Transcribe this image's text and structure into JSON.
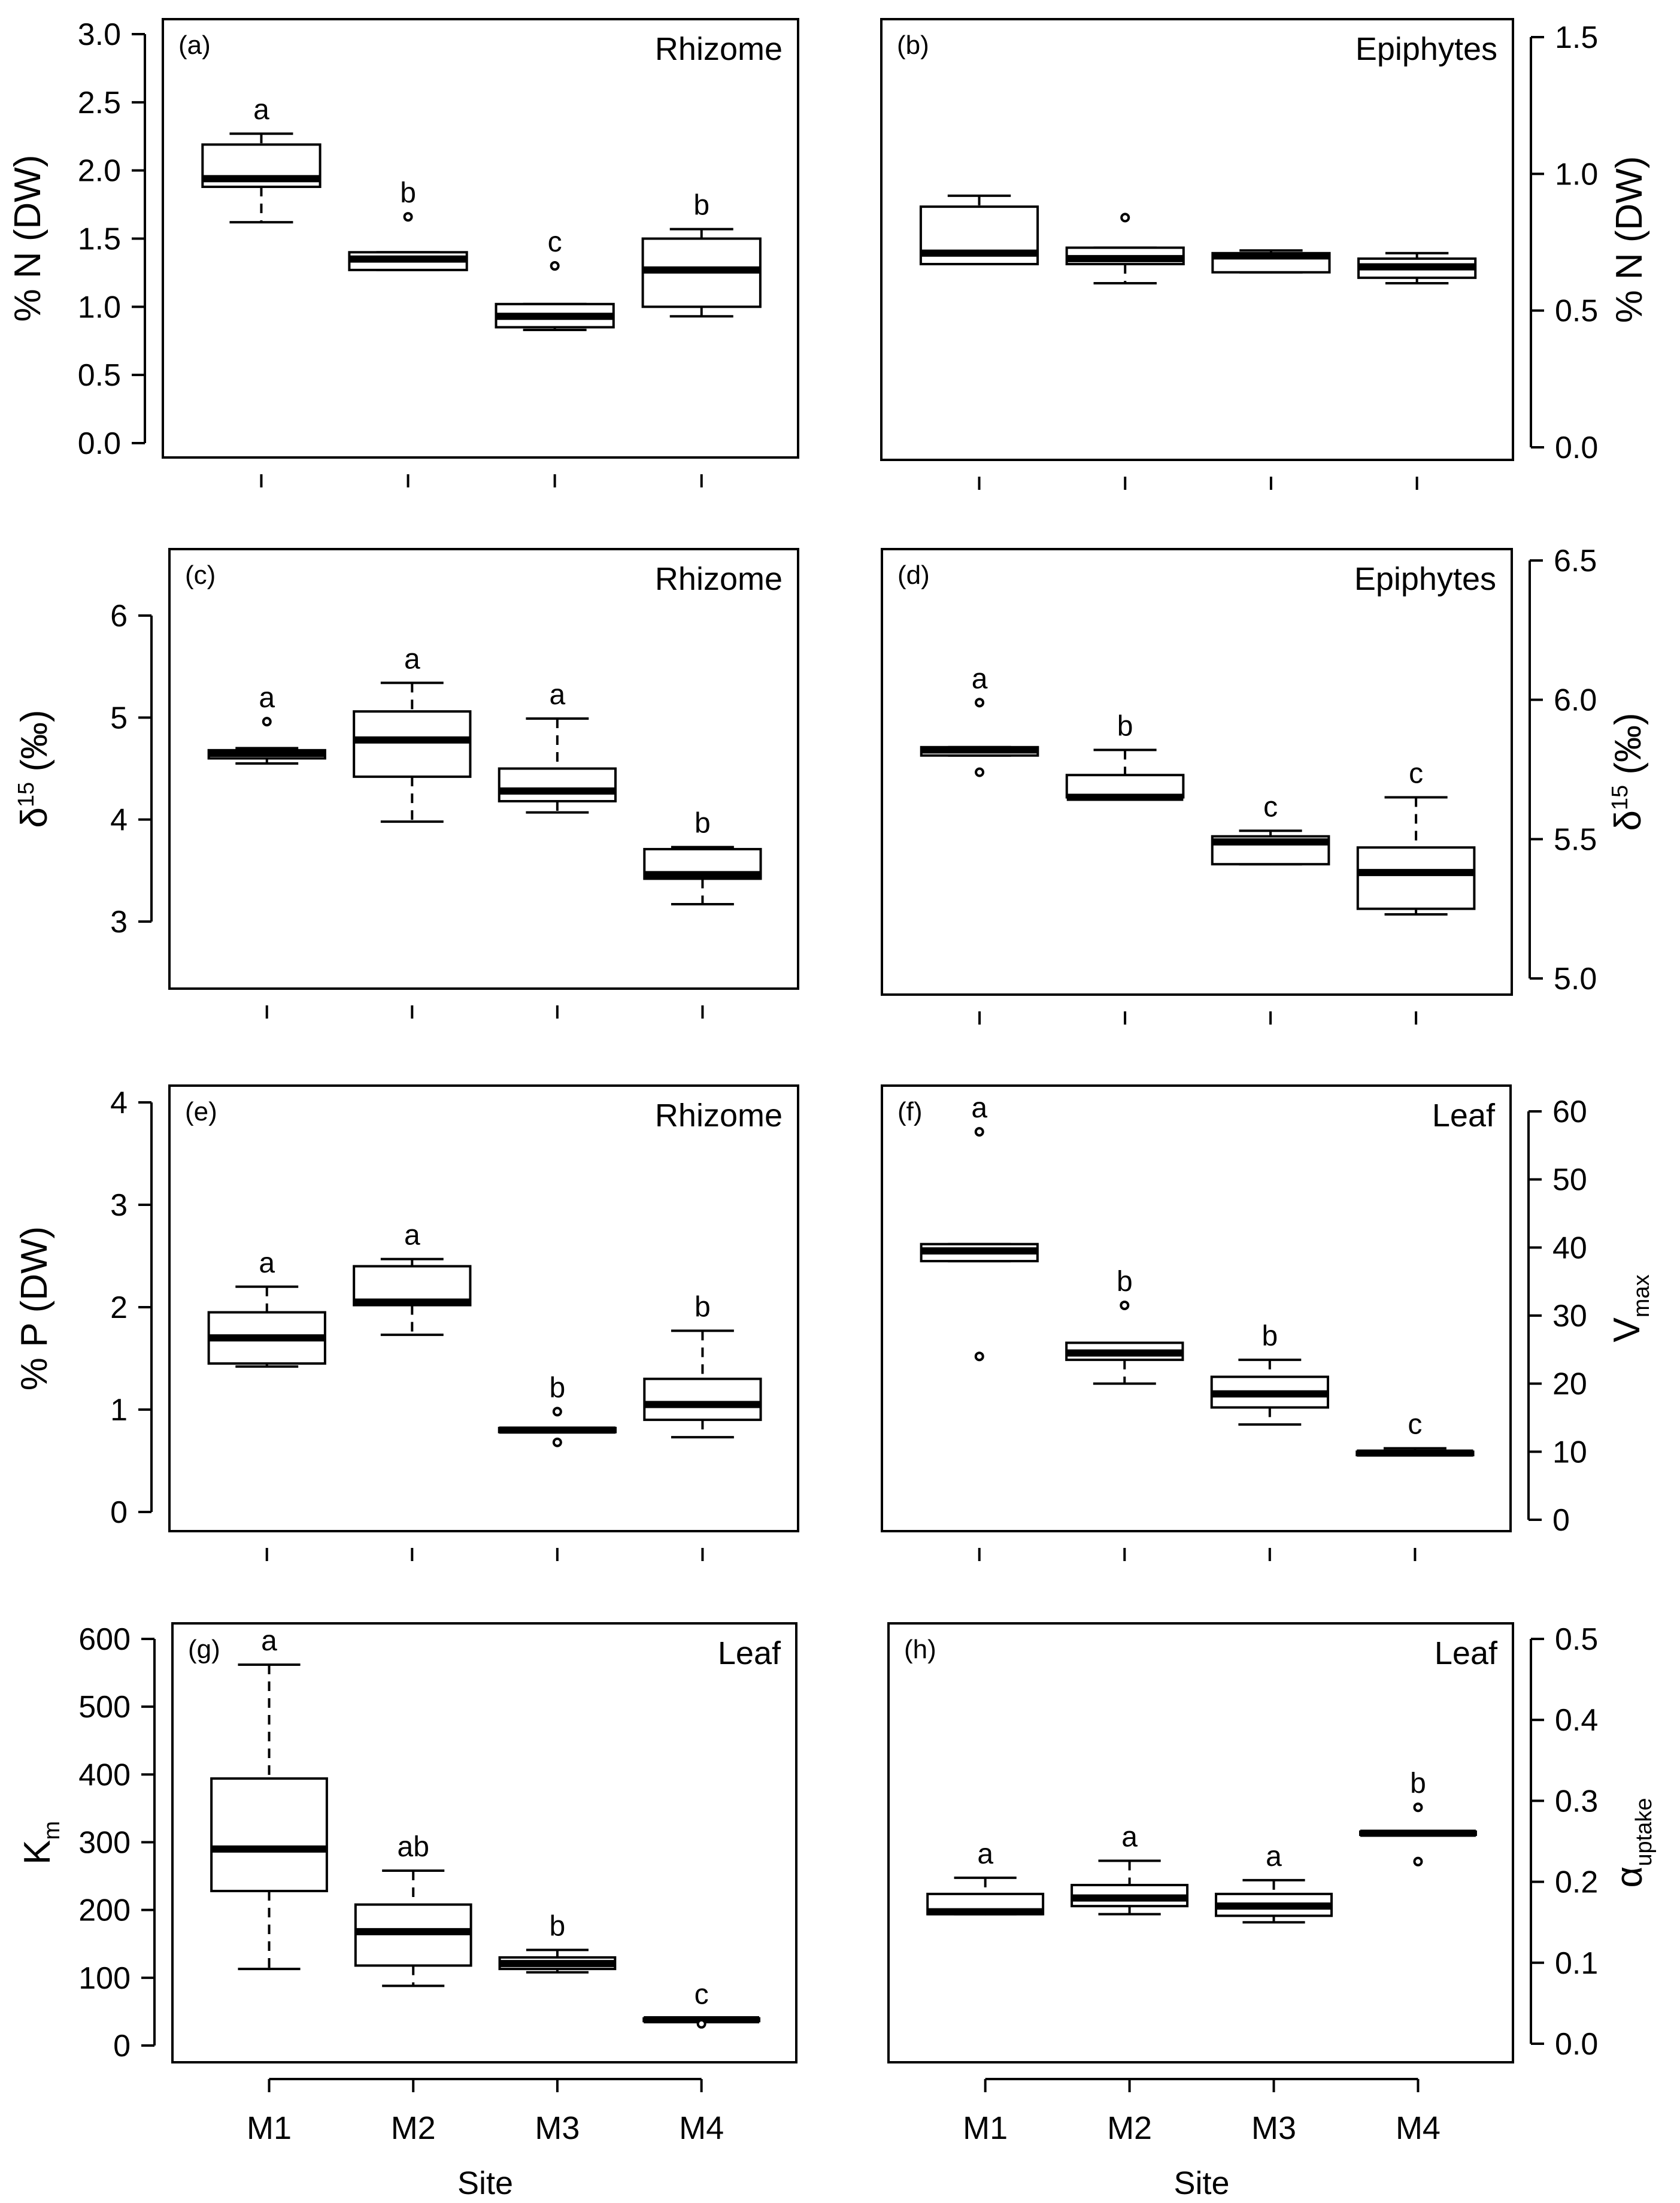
{
  "chart_data": [
    {
      "type": "box",
      "panel_tag": "(a)",
      "title": "Rhizome",
      "ylabel": "% N (DW)",
      "ylim": [
        0,
        3.0
      ],
      "y_ticks": [
        "0.0",
        "0.5",
        "1.0",
        "1.5",
        "2.0",
        "2.5",
        "3.0"
      ],
      "y_axis_side": "left",
      "categories": [
        "M1",
        "M2",
        "M3",
        "M4"
      ],
      "boxes": [
        {
          "min": 1.62,
          "q1": 1.88,
          "median": 1.94,
          "q3": 2.19,
          "max": 2.27,
          "outliers": [],
          "letter": "a"
        },
        {
          "min": 1.27,
          "q1": 1.27,
          "median": 1.35,
          "q3": 1.4,
          "max": 1.4,
          "outliers": [
            1.66
          ],
          "letter": "b"
        },
        {
          "min": 0.83,
          "q1": 0.85,
          "median": 0.93,
          "q3": 1.02,
          "max": 1.02,
          "outliers": [
            1.3
          ],
          "letter": "c"
        },
        {
          "min": 0.93,
          "q1": 1.0,
          "median": 1.27,
          "q3": 1.5,
          "max": 1.57,
          "outliers": [],
          "letter": "b"
        }
      ]
    },
    {
      "type": "box",
      "panel_tag": "(b)",
      "title": "Epiphytes",
      "ylabel": "% N (DW)",
      "ylim": [
        0,
        1.5
      ],
      "y_ticks": [
        "0.0",
        "0.5",
        "1.0",
        "1.5"
      ],
      "y_axis_side": "right",
      "categories": [
        "M1",
        "M2",
        "M3",
        "M4"
      ],
      "boxes": [
        {
          "min": 0.67,
          "q1": 0.67,
          "median": 0.71,
          "q3": 0.88,
          "max": 0.92,
          "outliers": [],
          "letter": ""
        },
        {
          "min": 0.6,
          "q1": 0.67,
          "median": 0.69,
          "q3": 0.73,
          "max": 0.73,
          "outliers": [
            0.84
          ],
          "letter": ""
        },
        {
          "min": 0.64,
          "q1": 0.64,
          "median": 0.7,
          "q3": 0.71,
          "max": 0.72,
          "outliers": [],
          "letter": ""
        },
        {
          "min": 0.6,
          "q1": 0.62,
          "median": 0.66,
          "q3": 0.69,
          "max": 0.71,
          "outliers": [],
          "letter": ""
        }
      ]
    },
    {
      "type": "box",
      "panel_tag": "(c)",
      "title": "Rhizome",
      "ylabel": "δ15N (‰)",
      "ylim": [
        2.5,
        6.6
      ],
      "y_ticks": [
        "3",
        "4",
        "5",
        "6"
      ],
      "y_axis_side": "left",
      "categories": [
        "M1",
        "M2",
        "M3",
        "M4"
      ],
      "boxes": [
        {
          "min": 4.55,
          "q1": 4.6,
          "median": 4.65,
          "q3": 4.68,
          "max": 4.7,
          "outliers": [
            4.96
          ],
          "letter": "a"
        },
        {
          "min": 3.98,
          "q1": 4.42,
          "median": 4.78,
          "q3": 5.06,
          "max": 5.34,
          "outliers": [],
          "letter": "a"
        },
        {
          "min": 4.07,
          "q1": 4.18,
          "median": 4.28,
          "q3": 4.5,
          "max": 4.99,
          "outliers": [],
          "letter": "a"
        },
        {
          "min": 3.17,
          "q1": 3.42,
          "median": 3.46,
          "q3": 3.71,
          "max": 3.73,
          "outliers": [],
          "letter": "b"
        }
      ]
    },
    {
      "type": "box",
      "panel_tag": "(d)",
      "title": "Epiphytes",
      "ylabel": "δ15N (‰)",
      "ylim": [
        4.95,
        6.5
      ],
      "y_ticks": [
        "5.0",
        "5.5",
        "6.0",
        "6.5"
      ],
      "y_axis_side": "right",
      "categories": [
        "M1",
        "M2",
        "M3",
        "M4"
      ],
      "boxes": [
        {
          "min": 5.8,
          "q1": 5.8,
          "median": 5.82,
          "q3": 5.83,
          "max": 5.83,
          "outliers": [
            5.99,
            5.74
          ],
          "letter": "a"
        },
        {
          "min": 5.65,
          "q1": 5.65,
          "median": 5.65,
          "q3": 5.73,
          "max": 5.82,
          "outliers": [],
          "letter": "b"
        },
        {
          "min": 5.41,
          "q1": 5.41,
          "median": 5.49,
          "q3": 5.51,
          "max": 5.53,
          "outliers": [],
          "letter": "c"
        },
        {
          "min": 5.23,
          "q1": 5.25,
          "median": 5.38,
          "q3": 5.47,
          "max": 5.65,
          "outliers": [],
          "letter": "c"
        }
      ]
    },
    {
      "type": "box",
      "panel_tag": "(e)",
      "title": "Rhizome",
      "ylabel": "% P (DW)",
      "ylim": [
        -0.05,
        4.15
      ],
      "y_ticks": [
        "0",
        "1",
        "2",
        "3",
        "4"
      ],
      "y_axis_side": "left",
      "categories": [
        "M1",
        "M2",
        "M3",
        "M4"
      ],
      "boxes": [
        {
          "min": 1.42,
          "q1": 1.45,
          "median": 1.7,
          "q3": 1.95,
          "max": 2.2,
          "outliers": [],
          "letter": "a"
        },
        {
          "min": 1.73,
          "q1": 2.02,
          "median": 2.05,
          "q3": 2.4,
          "max": 2.47,
          "outliers": [],
          "letter": "a"
        },
        {
          "min": 0.78,
          "q1": 0.78,
          "median": 0.8,
          "q3": 0.82,
          "max": 0.82,
          "outliers": [
            0.98,
            0.68
          ],
          "letter": "b"
        },
        {
          "min": 0.73,
          "q1": 0.9,
          "median": 1.05,
          "q3": 1.3,
          "max": 1.77,
          "outliers": [],
          "letter": "b"
        }
      ]
    },
    {
      "type": "box",
      "panel_tag": "(f)",
      "title": "Leaf",
      "ylabel": "Vmax",
      "ylim": [
        -1,
        62
      ],
      "y_ticks": [
        "0",
        "10",
        "20",
        "30",
        "40",
        "50",
        "60"
      ],
      "y_axis_side": "right",
      "categories": [
        "M1",
        "M2",
        "M3",
        "M4"
      ],
      "boxes": [
        {
          "min": 38,
          "q1": 38,
          "median": 39.5,
          "q3": 40.5,
          "max": 40.5,
          "outliers": [
            57,
            24
          ],
          "letter": "a"
        },
        {
          "min": 20,
          "q1": 23.5,
          "median": 24.5,
          "q3": 26,
          "max": 26,
          "outliers": [
            31.5
          ],
          "letter": "b"
        },
        {
          "min": 14,
          "q1": 16.5,
          "median": 18.5,
          "q3": 21,
          "max": 23.5,
          "outliers": [],
          "letter": "b"
        },
        {
          "min": 9.5,
          "q1": 9.5,
          "median": 9.8,
          "q3": 10,
          "max": 10.5,
          "outliers": [],
          "letter": "c"
        }
      ]
    },
    {
      "type": "box",
      "panel_tag": "(g)",
      "title": "Leaf",
      "ylabel": "Km",
      "ylim": [
        -10,
        620
      ],
      "y_ticks": [
        "0",
        "100",
        "200",
        "300",
        "400",
        "500",
        "600"
      ],
      "y_axis_side": "left",
      "xlabel": "Site",
      "categories": [
        "M1",
        "M2",
        "M3",
        "M4"
      ],
      "boxes": [
        {
          "min": 113,
          "q1": 228,
          "median": 290,
          "q3": 394,
          "max": 562,
          "outliers": [],
          "letter": "a"
        },
        {
          "min": 88,
          "q1": 118,
          "median": 168,
          "q3": 208,
          "max": 258,
          "outliers": [],
          "letter": "ab"
        },
        {
          "min": 108,
          "q1": 113,
          "median": 121,
          "q3": 130,
          "max": 141,
          "outliers": [],
          "letter": "b"
        },
        {
          "min": 36,
          "q1": 36,
          "median": 38,
          "q3": 40,
          "max": 40,
          "outliers": [
            32
          ],
          "letter": "c"
        }
      ]
    },
    {
      "type": "box",
      "panel_tag": "(h)",
      "title": "Leaf",
      "ylabel": "αuptake",
      "ylim": [
        -0.01,
        0.52
      ],
      "y_ticks": [
        "0.0",
        "0.1",
        "0.2",
        "0.3",
        "0.4",
        "0.5"
      ],
      "y_axis_side": "right",
      "xlabel": "Site",
      "categories": [
        "M1",
        "M2",
        "M3",
        "M4"
      ],
      "boxes": [
        {
          "min": 0.16,
          "q1": 0.16,
          "median": 0.163,
          "q3": 0.185,
          "max": 0.205,
          "outliers": [],
          "letter": "a"
        },
        {
          "min": 0.16,
          "q1": 0.17,
          "median": 0.18,
          "q3": 0.196,
          "max": 0.226,
          "outliers": [],
          "letter": "a"
        },
        {
          "min": 0.15,
          "q1": 0.158,
          "median": 0.17,
          "q3": 0.185,
          "max": 0.202,
          "outliers": [],
          "letter": "a"
        },
        {
          "min": 0.258,
          "q1": 0.258,
          "median": 0.26,
          "q3": 0.262,
          "max": 0.262,
          "outliers": [
            0.292,
            0.225
          ],
          "letter": "b"
        }
      ]
    }
  ]
}
